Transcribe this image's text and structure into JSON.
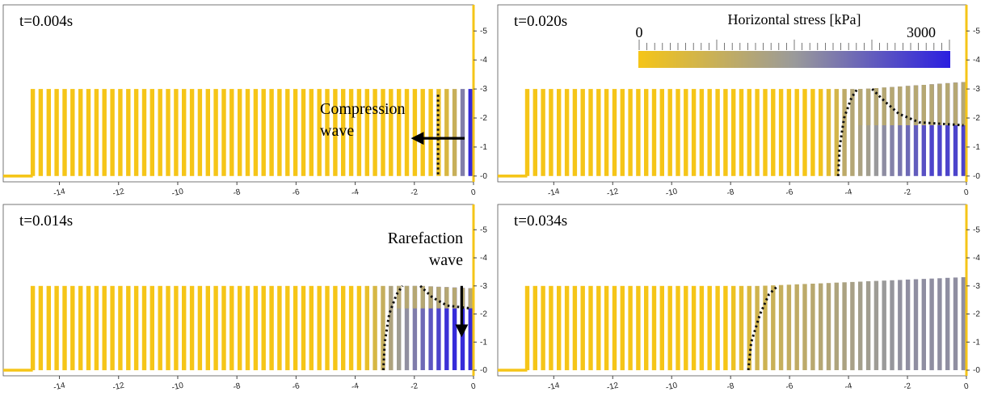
{
  "colors": {
    "low": "#f5c518",
    "mid": "#9a9a9a",
    "high": "#2b1fe0",
    "wave_front": "#111111",
    "frame": "#444444"
  },
  "colorbar": {
    "title": "Horizontal stress [kPa]",
    "min_label": "0",
    "max_label": "3000",
    "range": [
      0,
      3000
    ]
  },
  "annotations": {
    "compression": [
      "Compression",
      "wave"
    ],
    "rarefaction": [
      "Rarefaction",
      "wave"
    ]
  },
  "chart_data": [
    {
      "type": "scatter",
      "time_label": "t=0.004s",
      "x_ticks": [
        "-14",
        "-12",
        "-10",
        "-8",
        "-6",
        "-4",
        "-2",
        "0"
      ],
      "y_ticks": [
        "0",
        "1",
        "2",
        "3",
        "4",
        "5"
      ],
      "xlim": [
        -15.9,
        0
      ],
      "ylim": [
        -0.2,
        5.9
      ],
      "column_x_range": [
        -14.9,
        -0.1
      ],
      "column_height": 3.0,
      "stress_front_x": -0.55,
      "peak_fraction": 0.95,
      "front_lines": [
        [
          [
            -1.2,
            2.8
          ],
          [
            -1.2,
            2.0
          ],
          [
            -1.2,
            1.0
          ],
          [
            -1.2,
            0.0
          ]
        ]
      ],
      "arrow": {
        "from": [
          -0.3,
          1.3
        ],
        "to": [
          -1.9,
          1.3
        ]
      }
    },
    {
      "type": "scatter",
      "time_label": "t=0.020s",
      "x_ticks": [
        "-14",
        "-12",
        "-10",
        "-8",
        "-6",
        "-4",
        "-2",
        "0"
      ],
      "y_ticks": [
        "0",
        "1",
        "2",
        "3",
        "4",
        "5"
      ],
      "xlim": [
        -15.9,
        0
      ],
      "ylim": [
        -0.2,
        5.9
      ],
      "column_x_range": [
        -14.9,
        -0.1
      ],
      "column_height": 3.0,
      "stress_front_x": -4.2,
      "peak_fraction": 0.85,
      "front_lines": [
        [
          [
            -4.35,
            0.0
          ],
          [
            -4.3,
            1.0
          ],
          [
            -4.15,
            2.0
          ],
          [
            -3.9,
            2.7
          ],
          [
            -3.7,
            3.0
          ]
        ],
        [
          [
            -3.2,
            3.0
          ],
          [
            -2.8,
            2.6
          ],
          [
            -2.3,
            2.15
          ],
          [
            -1.6,
            1.85
          ],
          [
            -0.1,
            1.75
          ]
        ]
      ]
    },
    {
      "type": "scatter",
      "time_label": "t=0.014s",
      "x_ticks": [
        "-14",
        "-12",
        "-10",
        "-8",
        "-6",
        "-4",
        "-2",
        "0"
      ],
      "y_ticks": [
        "0",
        "1",
        "2",
        "3",
        "4",
        "5"
      ],
      "xlim": [
        -15.9,
        0
      ],
      "ylim": [
        -0.2,
        5.9
      ],
      "column_x_range": [
        -14.9,
        -0.1
      ],
      "column_height": 3.0,
      "stress_front_x": -3.0,
      "peak_fraction": 0.95,
      "front_lines": [
        [
          [
            -3.05,
            0.0
          ],
          [
            -3.0,
            1.0
          ],
          [
            -2.85,
            2.0
          ],
          [
            -2.6,
            2.7
          ],
          [
            -2.4,
            3.0
          ]
        ],
        [
          [
            -1.8,
            3.0
          ],
          [
            -1.4,
            2.6
          ],
          [
            -0.9,
            2.3
          ],
          [
            -0.1,
            2.2
          ]
        ]
      ],
      "arrow": {
        "from": [
          -0.4,
          3.0
        ],
        "to": [
          -0.4,
          1.4
        ]
      }
    },
    {
      "type": "scatter",
      "time_label": "t=0.034s",
      "x_ticks": [
        "-14",
        "-12",
        "-10",
        "-8",
        "-6",
        "-4",
        "-2",
        "0"
      ],
      "y_ticks": [
        "0",
        "1",
        "2",
        "3",
        "4",
        "5"
      ],
      "xlim": [
        -15.9,
        0
      ],
      "ylim": [
        -0.2,
        5.9
      ],
      "column_x_range": [
        -14.9,
        -0.1
      ],
      "column_height": 3.0,
      "stress_front_x": -7.3,
      "peak_fraction": 0.55,
      "front_lines": [
        [
          [
            -7.4,
            0.0
          ],
          [
            -7.3,
            1.0
          ],
          [
            -7.0,
            2.0
          ],
          [
            -6.7,
            2.7
          ],
          [
            -6.4,
            3.0
          ]
        ]
      ]
    }
  ]
}
